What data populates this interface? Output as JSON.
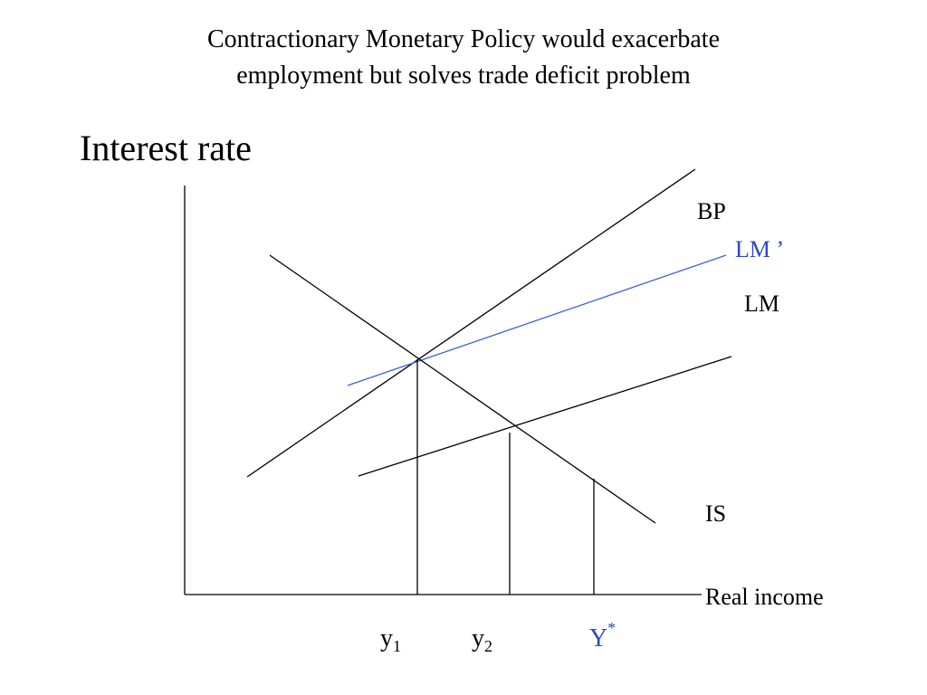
{
  "header": {
    "title_lines": [
      "Contractionary Monetary Policy would exacerbate",
      "employment but solves trade deficit problem"
    ]
  },
  "axes": {
    "y_label": "Interest rate",
    "x_label": "Real income"
  },
  "curves": {
    "bp": "BP",
    "lm_prime": "LM ’",
    "lm": "LM",
    "is": "IS"
  },
  "x_markers": [
    {
      "base": "y",
      "sub": "1"
    },
    {
      "base": "y",
      "sub": "2"
    },
    {
      "base": "Y",
      "sup": "*"
    }
  ]
}
